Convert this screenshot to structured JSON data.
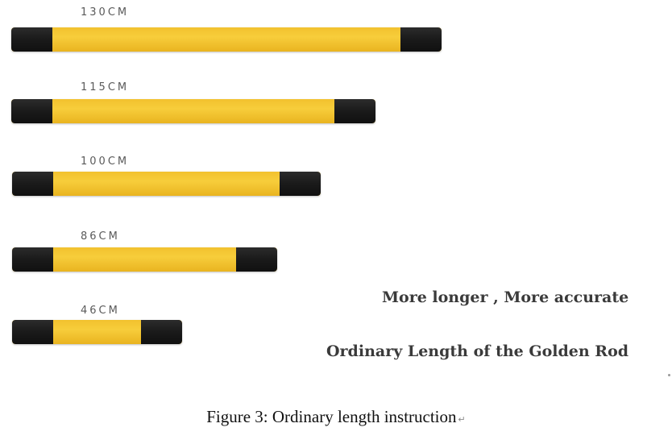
{
  "rods": [
    {
      "label": "130CM",
      "length_cm": 130
    },
    {
      "label": "115CM",
      "length_cm": 115
    },
    {
      "label": "100CM",
      "length_cm": 100
    },
    {
      "label": "86CM",
      "length_cm": 86
    },
    {
      "label": "46CM",
      "length_cm": 46
    }
  ],
  "slogan": "More longer , More accurate",
  "subtitle": "Ordinary Length of the Golden Rod",
  "caption": {
    "text": "Figure 3: Ordinary length instruction",
    "return_mark": "↵"
  },
  "colors": {
    "rod_body": "#f2c12e",
    "rod_cap": "#1a1a1a",
    "label": "#5a5a5a",
    "slogan": "#3a3a3a"
  }
}
